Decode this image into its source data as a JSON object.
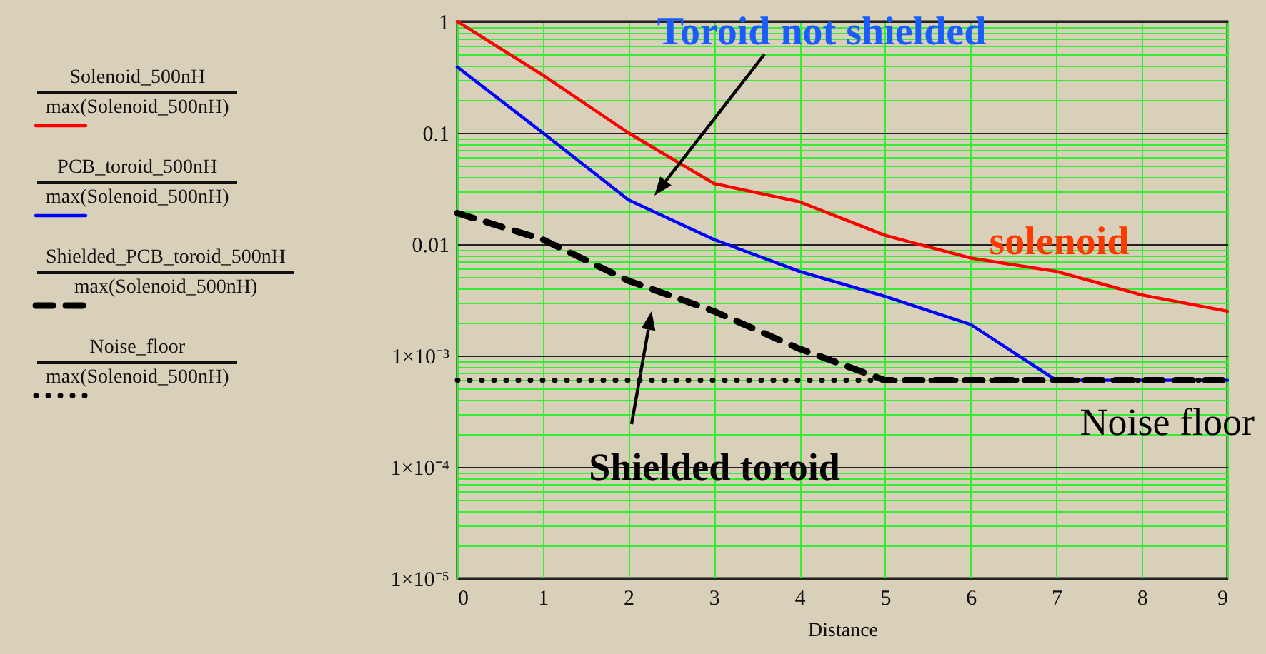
{
  "chart_data": {
    "type": "line",
    "xlabel": "Distance",
    "log": "y",
    "grid": true,
    "legend": "left",
    "x": [
      0,
      1,
      2,
      3,
      4,
      5,
      6,
      7,
      8,
      9
    ],
    "xlim": [
      0,
      9
    ],
    "xticks": [
      {
        "value": 0,
        "label": "0"
      },
      {
        "value": 1,
        "label": "1"
      },
      {
        "value": 2,
        "label": "2"
      },
      {
        "value": 3,
        "label": "3"
      },
      {
        "value": 4,
        "label": "4"
      },
      {
        "value": 5,
        "label": "5"
      },
      {
        "value": 6,
        "label": "6"
      },
      {
        "value": 7,
        "label": "7"
      },
      {
        "value": 8,
        "label": "8"
      },
      {
        "value": 9,
        "label": "9"
      }
    ],
    "ylim": [
      1e-05,
      1
    ],
    "yticks": [
      {
        "value": 1,
        "label": "1"
      },
      {
        "value": 0.1,
        "label": "0.1"
      },
      {
        "value": 0.01,
        "label": "0.01"
      },
      {
        "value": 0.001,
        "label": "1×10⁻³"
      },
      {
        "value": 0.0001,
        "label": "1×10⁻⁴"
      },
      {
        "value": 1e-05,
        "label": "1×10⁻⁵"
      }
    ],
    "series": [
      {
        "name": "Solenoid_500nH\nmax(Solenoid_500nH)",
        "color": "#ff0000",
        "line_style": "solid",
        "values": [
          1,
          0.33,
          0.1,
          0.035,
          0.024,
          0.012,
          0.0075,
          0.0057,
          0.0035,
          0.0025
        ]
      },
      {
        "name": "PCB_toroid_500nH\nmax(Solenoid_500nH)",
        "color": "#0000ff",
        "line_style": "solid",
        "values": [
          0.39,
          0.1,
          0.025,
          0.011,
          0.0057,
          0.0034,
          0.0019,
          0.0006,
          0.0006,
          0.0006
        ]
      },
      {
        "name": "Shielded_PCB_toroid_500nH\nmax(Solenoid_500nH)",
        "color": "#000000",
        "line_style": "dashed",
        "values": [
          0.019,
          0.011,
          0.0047,
          0.0025,
          0.00115,
          0.0006,
          0.0006,
          0.0006,
          0.0006,
          0.0006
        ]
      },
      {
        "name": "Noise_floor\nmax(Solenoid_500nH)",
        "color": "#000000",
        "line_style": "dotted",
        "values": [
          0.0006,
          0.0006,
          0.0006,
          0.0006,
          0.0006,
          0.0006,
          0.0006,
          0.0006,
          0.0006,
          0.0006
        ]
      }
    ],
    "annotations": [
      "Toroid not shielded",
      {
        "text": "solenoid",
        "x": 7,
        "y": 0.0057
      },
      "Shielded toroid",
      {
        "text": "Noise floor",
        "x": 9,
        "y": 0.0006
      }
    ]
  }
}
